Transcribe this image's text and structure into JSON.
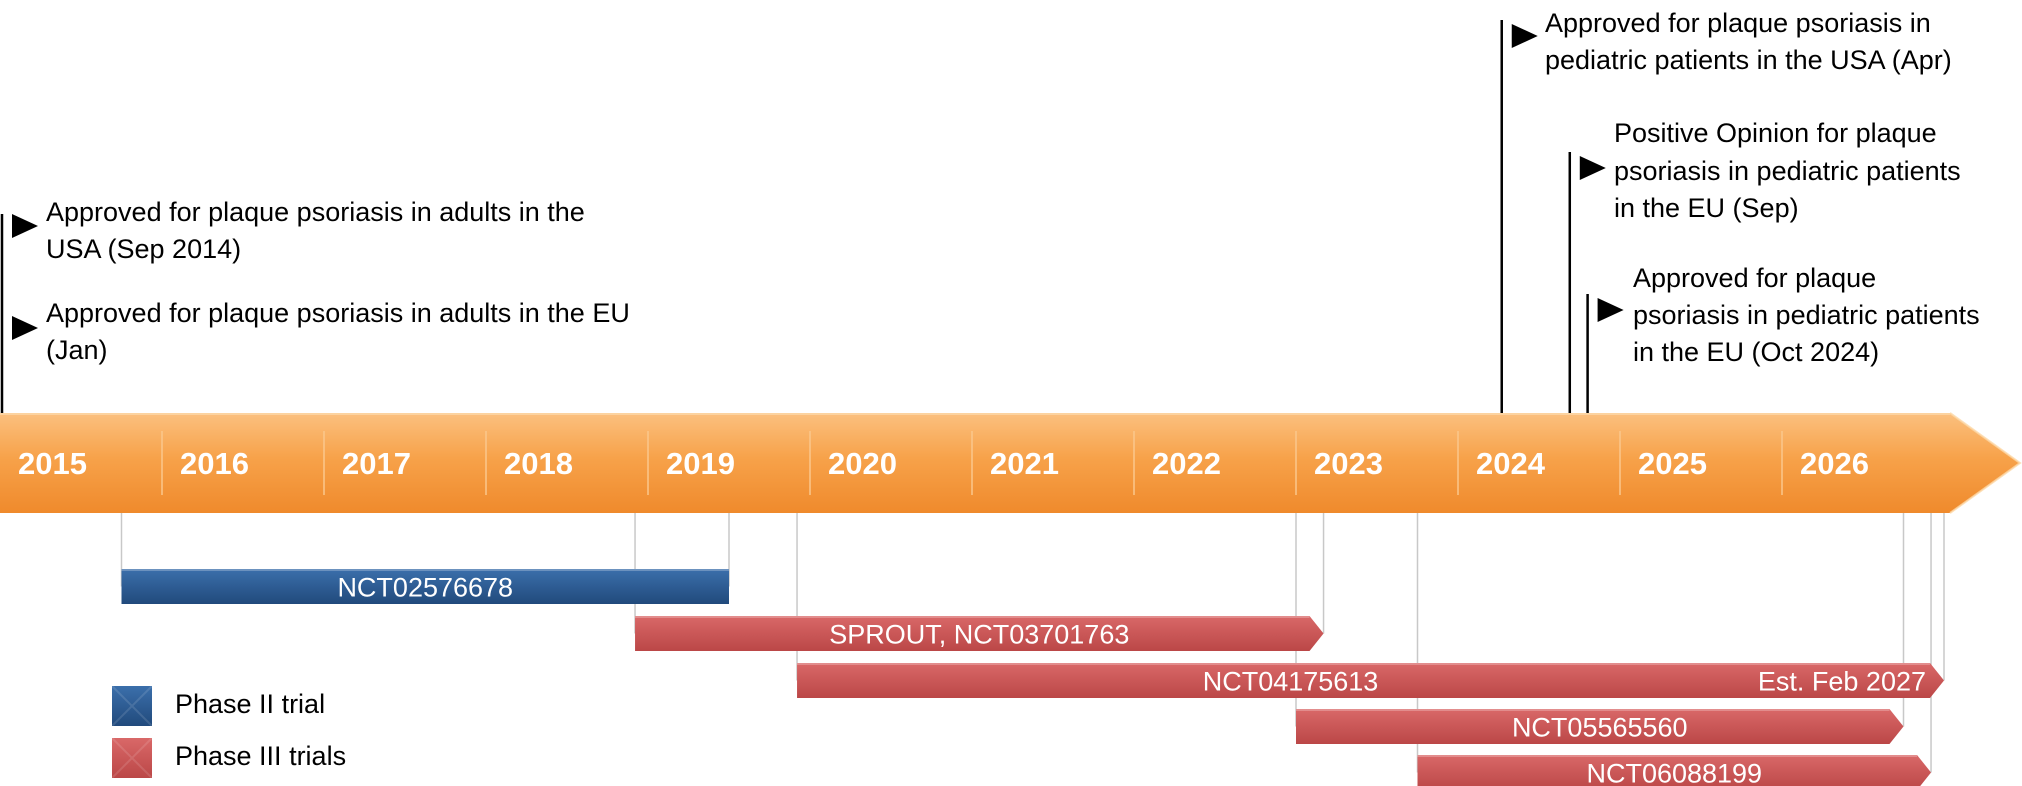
{
  "timeline": {
    "years": [
      "2015",
      "2016",
      "2017",
      "2018",
      "2019",
      "2020",
      "2021",
      "2022",
      "2023",
      "2024",
      "2025",
      "2026"
    ],
    "band_color": "#f7a24a",
    "band_text_color": "#ffffff"
  },
  "milestones": [
    {
      "id": "us-adults",
      "date": 2014.67,
      "label_lines": [
        "Approved for plaque psoriasis in adults in the",
        "USA (Sep 2014)"
      ]
    },
    {
      "id": "eu-adults",
      "date": 2015.0,
      "label_lines": [
        "Approved for plaque psoriasis in adults in the EU",
        "(Jan)"
      ]
    },
    {
      "id": "us-pediatric",
      "date": 2024.27,
      "label_lines": [
        "Approved for plaque psoriasis in",
        "pediatric patients in the USA (Apr)"
      ]
    },
    {
      "id": "eu-opinion",
      "date": 2024.69,
      "label_lines": [
        "Positive Opinion for plaque",
        "psoriasis in pediatric patients",
        "in the EU (Sep)"
      ]
    },
    {
      "id": "eu-pediatric",
      "date": 2024.8,
      "label_lines": [
        "Approved for plaque",
        "psoriasis in pediatric patients",
        "in the EU (Oct 2024)"
      ]
    }
  ],
  "trials": [
    {
      "id": "NCT02576678",
      "label": "NCT02576678",
      "phase": "II",
      "start": 2015.75,
      "end": 2019.5,
      "arrow": false
    },
    {
      "id": "SPROUT",
      "label": "SPROUT, NCT03701763",
      "phase": "III",
      "start": 2018.92,
      "end": 2023.17,
      "arrow": true
    },
    {
      "id": "NCT04175613",
      "label": "NCT04175613",
      "right_label": "Est. Feb 2027",
      "phase": "III",
      "start": 2019.92,
      "end": 2027.0,
      "arrow": true
    },
    {
      "id": "NCT05565560",
      "label": "NCT05565560",
      "phase": "III",
      "start": 2023.0,
      "end": 2026.75,
      "arrow": true
    },
    {
      "id": "NCT06088199",
      "label": "NCT06088199",
      "phase": "III",
      "start": 2023.75,
      "end": 2026.92,
      "arrow": true
    }
  ],
  "legend": {
    "items": [
      {
        "label": "Phase II trial",
        "color": "#2b5b94"
      },
      {
        "label": "Phase III trials",
        "color": "#cc5555"
      }
    ]
  },
  "colors": {
    "phase_ii": "#2b5b94",
    "phase_iii": "#cc5555",
    "flag": "#000000",
    "guide": "#c8c8c8"
  }
}
